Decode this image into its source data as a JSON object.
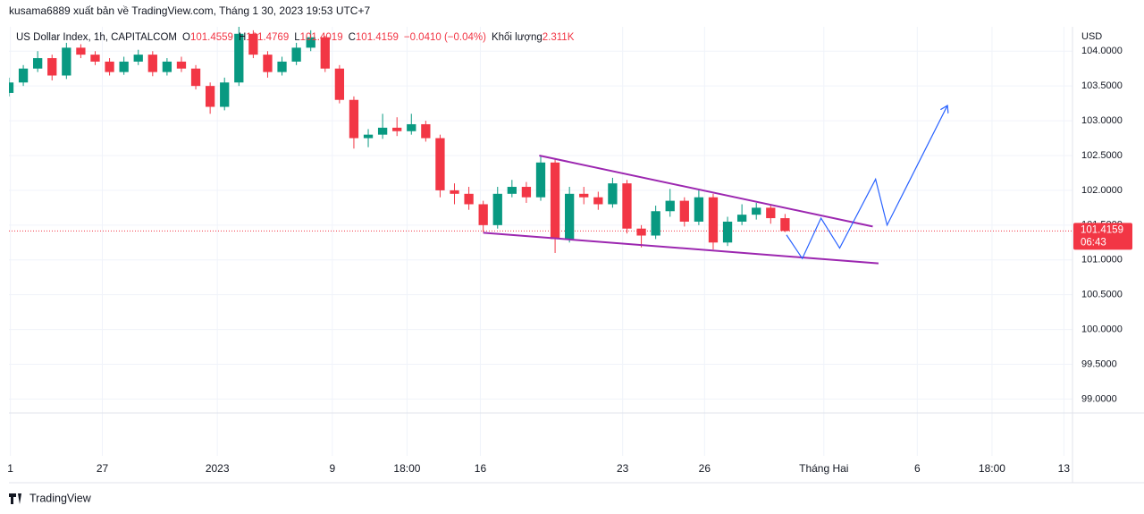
{
  "header": {
    "publisher": "kusama6889 xuất bản về TradingView.com, Tháng 1 30, 2023 19:53 UTC+7"
  },
  "legend": {
    "symbol": "US Dollar Index, 1h, CAPITALCOM",
    "ohlc": [
      {
        "label": "O",
        "value": "101.4559"
      },
      {
        "label": "H",
        "value": "101.4769"
      },
      {
        "label": "L",
        "value": "101.4019"
      },
      {
        "label": "C",
        "value": "101.4159"
      }
    ],
    "change": "−0.0410 (−0.04%)",
    "volume_label": "Khối lượng",
    "volume_value": "2.311K"
  },
  "footer": {
    "brand": "TradingView"
  },
  "chart_data": {
    "type": "candlestick",
    "currency": "USD",
    "up_color": "#089981",
    "down_color": "#f23645",
    "grid": true,
    "xlim": [
      0,
      74
    ],
    "xticks": [
      {
        "value": 0.1,
        "label": "1"
      },
      {
        "value": 6.5,
        "label": "27"
      },
      {
        "value": 14.5,
        "label": "2023"
      },
      {
        "value": 22.5,
        "label": "9"
      },
      {
        "value": 27.7,
        "label": "18:00"
      },
      {
        "value": 32.8,
        "label": "16"
      },
      {
        "value": 42.7,
        "label": "23"
      },
      {
        "value": 48.4,
        "label": "26"
      },
      {
        "value": 56.7,
        "label": "Tháng Hai"
      },
      {
        "value": 63.2,
        "label": "6"
      },
      {
        "value": 68.4,
        "label": "18:00"
      },
      {
        "value": 73.4,
        "label": "13"
      }
    ],
    "ylim": [
      98.8,
      104.35
    ],
    "yticks": [
      {
        "value": 99,
        "label": "99.0000"
      },
      {
        "value": 99.5,
        "label": "99.5000"
      },
      {
        "value": 100,
        "label": "100.0000"
      },
      {
        "value": 100.5,
        "label": "100.5000"
      },
      {
        "value": 101,
        "label": "101.0000"
      },
      {
        "value": 101.5,
        "label": "101.5000"
      },
      {
        "value": 102,
        "label": "102.0000"
      },
      {
        "value": 102.5,
        "label": "102.5000"
      },
      {
        "value": 103,
        "label": "103.0000"
      },
      {
        "value": 103.5,
        "label": "103.5000"
      },
      {
        "value": 104,
        "label": "104.0000"
      }
    ],
    "open": [
      103.4,
      103.55,
      103.75,
      103.9,
      103.65,
      104.05,
      103.95,
      103.85,
      103.7,
      103.85,
      103.95,
      103.7,
      103.85,
      103.75,
      103.5,
      103.2,
      103.55,
      104.25,
      103.95,
      103.7,
      103.85,
      104.05,
      104.2,
      103.75,
      103.3,
      102.75,
      102.8,
      102.9,
      102.85,
      102.95,
      102.75,
      102.0,
      101.95,
      101.8,
      101.5,
      101.95,
      102.05,
      101.9,
      102.4,
      101.3,
      101.95,
      101.9,
      101.8,
      102.1,
      101.45,
      101.35,
      101.7,
      101.85,
      101.55,
      101.9,
      101.25,
      101.55,
      101.65,
      101.75,
      101.6
    ],
    "high": [
      103.62,
      103.8,
      104.0,
      103.95,
      104.12,
      104.1,
      104.0,
      103.9,
      103.92,
      104.02,
      104.0,
      103.9,
      103.92,
      103.8,
      103.55,
      103.62,
      104.35,
      104.3,
      104.0,
      103.92,
      104.12,
      104.3,
      104.22,
      103.8,
      103.35,
      102.88,
      103.1,
      103.05,
      103.1,
      103.0,
      102.8,
      102.1,
      102.05,
      101.85,
      102.05,
      102.15,
      102.12,
      102.5,
      102.45,
      102.05,
      102.05,
      101.98,
      102.18,
      102.15,
      101.5,
      101.78,
      102.02,
      101.9,
      102.0,
      101.95,
      101.62,
      101.8,
      101.82,
      101.8,
      101.66
    ],
    "low": [
      103.35,
      103.5,
      103.7,
      103.58,
      103.6,
      103.9,
      103.8,
      103.65,
      103.66,
      103.8,
      103.64,
      103.65,
      103.7,
      103.45,
      103.1,
      103.15,
      103.5,
      103.9,
      103.62,
      103.65,
      103.8,
      104.0,
      103.7,
      103.25,
      102.6,
      102.62,
      102.74,
      102.78,
      102.8,
      102.7,
      101.9,
      101.8,
      101.72,
      101.4,
      101.45,
      101.9,
      101.82,
      101.85,
      101.1,
      101.25,
      101.8,
      101.72,
      101.75,
      101.38,
      101.18,
      101.3,
      101.62,
      101.48,
      101.5,
      101.15,
      101.2,
      101.5,
      101.58,
      101.52,
      101.4
    ],
    "close": [
      103.55,
      103.75,
      103.9,
      103.65,
      104.05,
      103.95,
      103.85,
      103.7,
      103.85,
      103.95,
      103.7,
      103.85,
      103.75,
      103.5,
      103.2,
      103.55,
      104.25,
      103.95,
      103.7,
      103.85,
      104.05,
      104.2,
      103.75,
      103.3,
      102.75,
      102.8,
      102.9,
      102.85,
      102.95,
      102.75,
      102.0,
      101.95,
      101.8,
      101.5,
      101.95,
      102.05,
      101.9,
      102.4,
      101.3,
      101.95,
      101.9,
      101.8,
      102.1,
      101.45,
      101.35,
      101.7,
      101.85,
      101.55,
      101.9,
      101.25,
      101.55,
      101.65,
      101.75,
      101.6,
      101.4159
    ],
    "last_price": {
      "value": 101.4159,
      "label": "101.4159",
      "countdown": "06:43",
      "color": "#f23645"
    },
    "drawings": [
      {
        "color": "#9c27b0",
        "points": [
          [
            36.9,
            102.5
          ],
          [
            60.1,
            101.48
          ]
        ]
      },
      {
        "color": "#9c27b0",
        "points": [
          [
            33.0,
            101.39
          ],
          [
            60.5,
            100.95
          ]
        ]
      },
      {
        "color": "#2962ff",
        "arrow": true,
        "points": [
          [
            54.1,
            101.36
          ],
          [
            55.2,
            101.02
          ],
          [
            56.5,
            101.6
          ],
          [
            57.8,
            101.17
          ],
          [
            60.3,
            102.16
          ],
          [
            61.1,
            101.5
          ],
          [
            65.3,
            103.22
          ]
        ]
      }
    ]
  }
}
